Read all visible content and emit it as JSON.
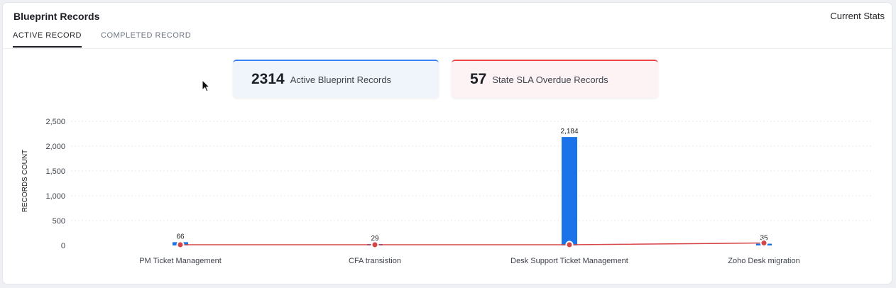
{
  "header": {
    "title": "Blueprint Records",
    "right_label": "Current Stats"
  },
  "tabs": [
    {
      "label": "ACTIVE RECORD",
      "active": true
    },
    {
      "label": "COMPLETED RECORD",
      "active": false
    }
  ],
  "stats": [
    {
      "value": "2314",
      "label": "Active Blueprint Records",
      "accent": "#3b82f6"
    },
    {
      "value": "57",
      "label": "State SLA Overdue Records",
      "accent": "#ef4444"
    }
  ],
  "chart_data": {
    "type": "bar",
    "ylabel": "RECORDS COUNT",
    "ylim": [
      0,
      2500
    ],
    "yticks": [
      "0",
      "500",
      "1,000",
      "1,500",
      "2,000",
      "2,500"
    ],
    "categories": [
      "PM Ticket Management",
      "CFA transistion",
      "Desk Support Ticket Management",
      "Zoho Desk migration"
    ],
    "series": [
      {
        "values": [
          66,
          29,
          2184,
          35
        ],
        "data_labels": [
          "66",
          "29",
          "2,184",
          "35"
        ],
        "color": "#1a73e8",
        "kind": "bar"
      },
      {
        "values": [
          0,
          0,
          0,
          35
        ],
        "color": "#d64545",
        "kind": "line"
      }
    ],
    "grid": true
  }
}
